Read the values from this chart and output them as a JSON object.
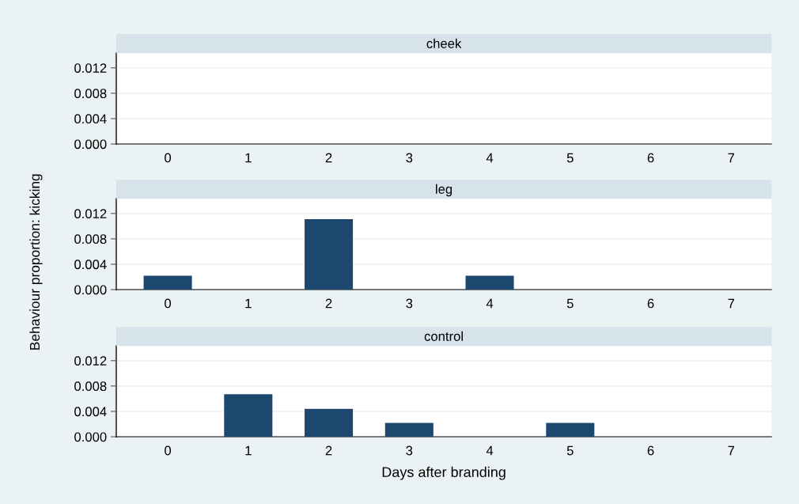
{
  "chart_data": [
    {
      "type": "bar",
      "title": "cheek",
      "categories": [
        "0",
        "1",
        "2",
        "3",
        "4",
        "5",
        "6",
        "7"
      ],
      "values": [
        0,
        0,
        0,
        0,
        0,
        0,
        0,
        0
      ],
      "color": "#1c4870",
      "ylim": [
        0,
        0.0143
      ],
      "yticks": [
        {
          "value": 0,
          "label": "0.000"
        },
        {
          "value": 0.004,
          "label": "0.004"
        },
        {
          "value": 0.008,
          "label": "0.008"
        },
        {
          "value": 0.012,
          "label": "0.012"
        }
      ],
      "grid": "y"
    },
    {
      "type": "bar",
      "title": "leg",
      "ylabel": "Behaviour proportion: kicking",
      "categories": [
        "0",
        "1",
        "2",
        "3",
        "4",
        "5",
        "6",
        "7"
      ],
      "values": [
        0.0022,
        0,
        0.0111,
        0,
        0.0022,
        0,
        0,
        0
      ],
      "color": "#1c4870",
      "ylim": [
        0,
        0.0143
      ],
      "yticks": [
        {
          "value": 0,
          "label": "0.000"
        },
        {
          "value": 0.004,
          "label": "0.004"
        },
        {
          "value": 0.008,
          "label": "0.008"
        },
        {
          "value": 0.012,
          "label": "0.012"
        }
      ],
      "grid": "y"
    },
    {
      "type": "bar",
      "title": "control",
      "xlabel": "Days after branding",
      "categories": [
        "0",
        "1",
        "2",
        "3",
        "4",
        "5",
        "6",
        "7"
      ],
      "values": [
        0,
        0.0067,
        0.0044,
        0.0022,
        0,
        0.0022,
        0,
        0
      ],
      "color": "#1c4870",
      "ylim": [
        0,
        0.0143
      ],
      "yticks": [
        {
          "value": 0,
          "label": "0.000"
        },
        {
          "value": 0.004,
          "label": "0.004"
        },
        {
          "value": 0.008,
          "label": "0.008"
        },
        {
          "value": 0.012,
          "label": "0.012"
        }
      ],
      "grid": "y"
    }
  ]
}
